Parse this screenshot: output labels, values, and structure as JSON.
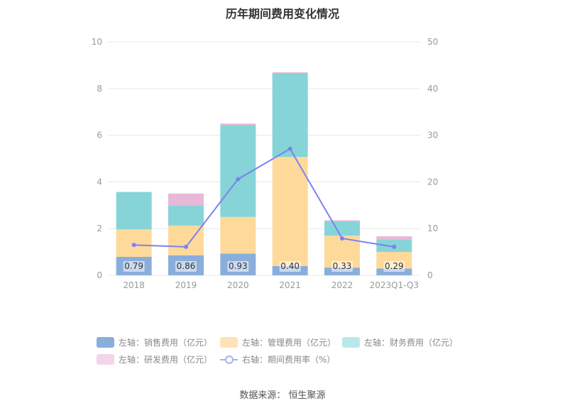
{
  "title": "历年期间费用变化情况",
  "source": "数据来源：  恒生聚源",
  "colors": {
    "sales": "#8aaedc",
    "admin": "#ffd99a",
    "finance": "#86d4d8",
    "rnd": "#e8b8d8",
    "rate": "#7b83eb",
    "grid": "#e8e8e8",
    "axis_text": "#999999"
  },
  "legend": [
    {
      "label": "左轴：销售费用（亿元）",
      "color": "#8aaedc"
    },
    {
      "label": "左轴：管理费用（亿元）",
      "color": "#ffe2b5"
    },
    {
      "label": "左轴：财务费用（亿元）",
      "color": "#b9e8ea"
    },
    {
      "label": "左轴：研发费用（亿元）",
      "color": "#f2d5e8"
    },
    {
      "label": "右轴：期间费用率（%）",
      "color": "#a9b0f0"
    }
  ],
  "chart_data": {
    "type": "bar",
    "stacked": true,
    "title": "历年期间费用变化情况",
    "categories": [
      "2018",
      "2019",
      "2020",
      "2021",
      "2022",
      "2023Q1-Q3"
    ],
    "left_axis": {
      "ylim": [
        0,
        10
      ],
      "ticks": [
        "0",
        "2",
        "4",
        "6",
        "8",
        "10"
      ]
    },
    "right_axis": {
      "ylim": [
        0,
        50
      ],
      "ticks": [
        "0",
        "10",
        "20",
        "30",
        "40",
        "50"
      ]
    },
    "series": [
      {
        "name": "左轴：销售费用（亿元）",
        "axis": "left",
        "values": [
          0.79,
          0.86,
          0.93,
          0.4,
          0.33,
          0.29
        ],
        "labels": [
          "0.79",
          "0.86",
          "0.93",
          "0.40",
          "0.33",
          "0.29"
        ]
      },
      {
        "name": "左轴：管理费用（亿元）",
        "axis": "left",
        "values": [
          1.18,
          1.27,
          1.57,
          4.67,
          1.37,
          0.71
        ]
      },
      {
        "name": "左轴：财务费用（亿元）",
        "axis": "left",
        "values": [
          1.6,
          0.87,
          3.93,
          3.6,
          0.62,
          0.52
        ]
      },
      {
        "name": "左轴：研发费用（亿元）",
        "axis": "left",
        "values": [
          0.0,
          0.5,
          0.07,
          0.03,
          0.04,
          0.15
        ]
      },
      {
        "name": "右轴：期间费用率（%）",
        "axis": "right",
        "type": "line",
        "values": [
          6.5,
          6.1,
          20.6,
          27.1,
          7.9,
          6.1
        ]
      }
    ],
    "grid": true,
    "legend_position": "bottom"
  }
}
